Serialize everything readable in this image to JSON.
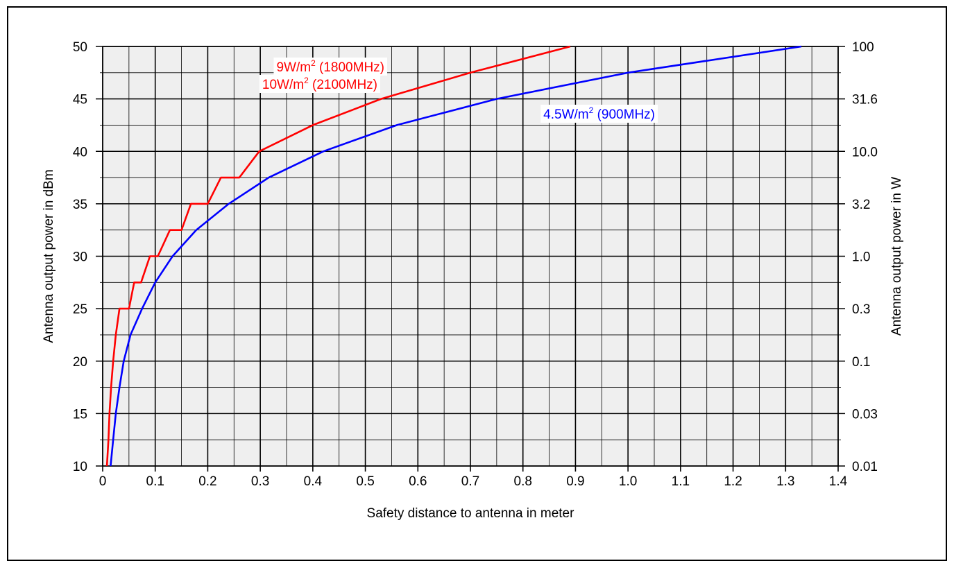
{
  "chart_data": {
    "type": "line",
    "xlabel": "Safety distance to antenna in meter",
    "ylabel": "Antenna output power in dBm",
    "y2label": "Antenna output power in W",
    "xlim": [
      0,
      1.4
    ],
    "ylim": [
      10,
      50
    ],
    "x_ticks": [
      "0",
      "0.1",
      "0.2",
      "0.3",
      "0.4",
      "0.5",
      "0.6",
      "0.7",
      "0.8",
      "0.9",
      "1.0",
      "1.1",
      "1.2",
      "1.3",
      "1.4"
    ],
    "y_ticks": [
      "10",
      "15",
      "20",
      "25",
      "30",
      "35",
      "40",
      "45",
      "50"
    ],
    "y2_ticks": [
      "0.01",
      "0.03",
      "0.1",
      "0.3",
      "1.0",
      "3.2",
      "10.0",
      "31.6",
      "100"
    ],
    "grid": true,
    "plot_background": "#efefef",
    "series": [
      {
        "name_lines": [
          {
            "base": "9W/m",
            "sup": "2",
            "rest": " (1800MHz)"
          },
          {
            "base": "10W/m",
            "sup": "2",
            "rest": " (2100MHz)"
          }
        ],
        "color": "#ff0000",
        "x": [
          0.008,
          0.011,
          0.013,
          0.016,
          0.02,
          0.025,
          0.032,
          0.04,
          0.05,
          0.06,
          0.073,
          0.09,
          0.105,
          0.128,
          0.15,
          0.168,
          0.2,
          0.225,
          0.26,
          0.298,
          0.4,
          0.53,
          0.7,
          0.89
        ],
        "y": [
          10,
          12.5,
          15,
          17.5,
          20,
          22.5,
          25,
          25,
          25,
          27.5,
          27.5,
          30,
          30,
          32.5,
          32.5,
          35,
          35,
          37.5,
          37.5,
          40,
          42.5,
          45,
          47.5,
          50
        ]
      },
      {
        "name_lines": [
          {
            "base": "4.5W/m",
            "sup": "2",
            "rest": " (900MHz)"
          }
        ],
        "color": "#0000ff",
        "x": [
          0.015,
          0.02,
          0.025,
          0.032,
          0.04,
          0.053,
          0.075,
          0.1,
          0.133,
          0.178,
          0.24,
          0.316,
          0.42,
          0.56,
          0.75,
          1.0,
          1.33
        ],
        "y": [
          10,
          12.5,
          15,
          17.5,
          20,
          22.5,
          25,
          27.5,
          30,
          32.5,
          35,
          37.5,
          40,
          42.5,
          45,
          47.5,
          50
        ]
      }
    ]
  }
}
